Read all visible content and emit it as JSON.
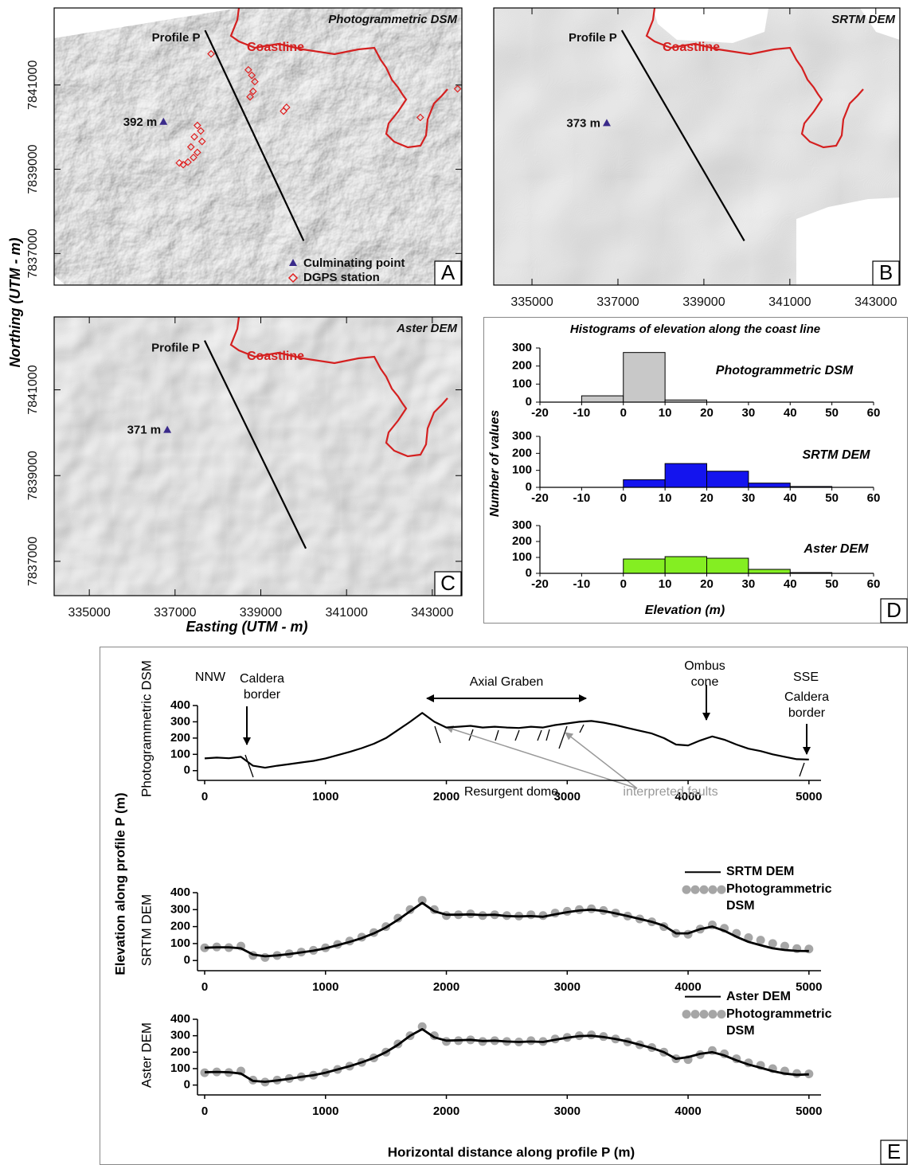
{
  "chart_data": [
    {
      "type": "map",
      "panel": "A",
      "title": "Photogrammetric DSM",
      "xlim": [
        334180,
        343690
      ],
      "ylim": [
        7836250,
        7842830
      ],
      "yticks": [
        7837000,
        7839000,
        7841000
      ],
      "profile": {
        "label": "Profile P",
        "x": [
          337700,
          340000
        ],
        "y": [
          7842300,
          7837300
        ]
      },
      "coastline": "Coastline",
      "coast_color": "#d42020",
      "summit": {
        "label": "392 m",
        "x": 336730,
        "y": 7840130,
        "color": "#3a2a8a"
      },
      "stations": {
        "color": "#e02020",
        "x": [
          337840,
          338710,
          338790,
          338860,
          338820,
          338750,
          339530,
          339600,
          337520,
          337600,
          337450,
          337630,
          337370,
          337520,
          337430,
          337300,
          337190,
          337100,
          343590,
          342720
        ],
        "y": [
          7841740,
          7841360,
          7841230,
          7841080,
          7840850,
          7840720,
          7840380,
          7840470,
          7840040,
          7839910,
          7839770,
          7839660,
          7839530,
          7839400,
          7839280,
          7839170,
          7839110,
          7839150,
          7840910,
          7840230
        ]
      },
      "legend": [
        "Culminating point",
        "DGPS station"
      ]
    },
    {
      "type": "map",
      "panel": "B",
      "title": "SRTM DEM",
      "xlim": [
        334110,
        343560
      ],
      "ylim": [
        7836250,
        7842830
      ],
      "xticks": [
        335000,
        337000,
        339000,
        341000,
        343000
      ],
      "profile": {
        "label": "Profile P",
        "x": [
          337090,
          339940
        ],
        "y": [
          7842300,
          7837300
        ]
      },
      "coastline": "Coastline",
      "coast_color": "#d42020",
      "summit": {
        "label": "373 m",
        "x": 336740,
        "y": 7840100,
        "color": "#3a2a8a"
      }
    },
    {
      "type": "map",
      "panel": "C",
      "title": "Aster DEM",
      "xlim": [
        334180,
        343690
      ],
      "ylim": [
        7836200,
        7842700
      ],
      "xticks": [
        335000,
        337000,
        339000,
        341000,
        343000
      ],
      "yticks": [
        7837000,
        7839000,
        7841000
      ],
      "xlabel": "Easting (UTM - m)",
      "ylabel": "Northing (UTM - m)",
      "profile": {
        "label": "Profile P",
        "x": [
          337690,
          340050
        ],
        "y": [
          7842150,
          7837300
        ]
      },
      "coastline": "Coastline",
      "coast_color": "#d42020",
      "summit": {
        "label": "371 m",
        "x": 336820,
        "y": 7840070,
        "color": "#3a2a8a"
      }
    },
    {
      "type": "histogram",
      "panel": "D",
      "title": "Histograms of elevation along the coast line",
      "xlabel": "Elevation (m)",
      "ylabel": "Number of values",
      "xlim": [
        -20,
        60
      ],
      "xticks": [
        -20,
        -10,
        0,
        10,
        20,
        30,
        40,
        50,
        60
      ],
      "ylim": [
        0,
        300
      ],
      "yticks": [
        0,
        100,
        200,
        300
      ],
      "series": [
        {
          "name": "Photogrammetric DSM",
          "color": "#c8c8c8",
          "bins": [
            -10,
            0,
            10,
            20
          ],
          "values": [
            35,
            275,
            12
          ]
        },
        {
          "name": "SRTM DEM",
          "color": "#1414ee",
          "bins": [
            0,
            10,
            20,
            30,
            40,
            50
          ],
          "values": [
            45,
            140,
            95,
            25,
            5
          ]
        },
        {
          "name": "Aster DEM",
          "color": "#84ee22",
          "bins": [
            0,
            10,
            20,
            30,
            40,
            50
          ],
          "values": [
            90,
            105,
            95,
            25,
            5
          ]
        }
      ]
    },
    {
      "type": "line",
      "panel": "E",
      "xlabel": "Horizontal distance along profile P (m)",
      "ylabel": "Elevation along profile P (m)",
      "xlim": [
        0,
        5100
      ],
      "xticks": [
        0,
        1000,
        2000,
        3000,
        4000,
        5000
      ],
      "ylim": [
        -60,
        400
      ],
      "yticks": [
        0,
        100,
        200,
        300,
        400
      ],
      "x": [
        0,
        100,
        200,
        300,
        400,
        500,
        600,
        700,
        800,
        900,
        1000,
        1100,
        1200,
        1300,
        1400,
        1500,
        1600,
        1700,
        1800,
        1900,
        2000,
        2100,
        2200,
        2300,
        2400,
        2500,
        2600,
        2700,
        2800,
        2900,
        3000,
        3100,
        3200,
        3300,
        3400,
        3500,
        3600,
        3700,
        3800,
        3900,
        4000,
        4100,
        4200,
        4300,
        4400,
        4500,
        4600,
        4700,
        4800,
        4900,
        5000
      ],
      "panels": [
        {
          "ylabel": "Photogrammetric DSM",
          "annotations": [
            "NNW",
            "SSE",
            "Caldera border",
            "Caldera border",
            "Axial Graben",
            "Ombus cone",
            "Resurgent dome",
            "interpreted faults"
          ],
          "series": [
            {
              "mode": "line",
              "color": "#000000",
              "values": [
                75,
                80,
                76,
                85,
                30,
                18,
                30,
                40,
                50,
                60,
                75,
                95,
                115,
                138,
                165,
                200,
                250,
                300,
                355,
                300,
                265,
                270,
                275,
                265,
                270,
                265,
                262,
                270,
                265,
                280,
                290,
                300,
                305,
                295,
                280,
                262,
                245,
                228,
                200,
                160,
                155,
                185,
                210,
                190,
                160,
                135,
                120,
                100,
                85,
                70,
                68
              ]
            }
          ]
        },
        {
          "ylabel": "SRTM DEM",
          "series": [
            {
              "name": "SRTM DEM",
              "mode": "line",
              "color": "#000000",
              "values": [
                75,
                78,
                78,
                72,
                35,
                25,
                30,
                38,
                48,
                58,
                72,
                90,
                110,
                132,
                160,
                195,
                240,
                290,
                340,
                290,
                270,
                270,
                272,
                268,
                270,
                262,
                260,
                262,
                258,
                272,
                285,
                295,
                300,
                292,
                278,
                262,
                245,
                228,
                205,
                160,
                160,
                185,
                200,
                175,
                140,
                110,
                90,
                72,
                62,
                57,
                56
              ]
            },
            {
              "name": "Photogrammetric DSM",
              "mode": "markers",
              "color": "#a6a6a6",
              "values": [
                75,
                80,
                76,
                85,
                30,
                18,
                30,
                40,
                50,
                60,
                75,
                95,
                115,
                138,
                165,
                200,
                250,
                300,
                355,
                300,
                265,
                270,
                275,
                265,
                270,
                265,
                262,
                270,
                265,
                280,
                290,
                300,
                305,
                295,
                280,
                262,
                245,
                228,
                200,
                160,
                155,
                185,
                210,
                190,
                160,
                135,
                120,
                100,
                85,
                70,
                68
              ]
            }
          ]
        },
        {
          "ylabel": "Aster DEM",
          "series": [
            {
              "name": "Aster DEM",
              "mode": "line",
              "color": "#000000",
              "values": [
                78,
                80,
                78,
                70,
                25,
                20,
                28,
                38,
                50,
                60,
                75,
                95,
                115,
                138,
                165,
                200,
                245,
                300,
                340,
                290,
                270,
                272,
                275,
                268,
                270,
                265,
                262,
                265,
                262,
                275,
                288,
                298,
                300,
                292,
                280,
                265,
                245,
                225,
                200,
                160,
                170,
                190,
                200,
                180,
                150,
                125,
                105,
                85,
                70,
                62,
                65
              ]
            },
            {
              "name": "Photogrammetric DSM",
              "mode": "markers",
              "color": "#a6a6a6",
              "values": [
                75,
                80,
                76,
                85,
                30,
                18,
                30,
                40,
                50,
                60,
                75,
                95,
                115,
                138,
                165,
                200,
                250,
                300,
                355,
                300,
                265,
                270,
                275,
                265,
                270,
                265,
                262,
                270,
                265,
                280,
                290,
                300,
                305,
                295,
                280,
                262,
                245,
                228,
                200,
                160,
                155,
                185,
                210,
                190,
                160,
                135,
                120,
                100,
                85,
                70,
                68
              ]
            }
          ]
        }
      ]
    }
  ]
}
